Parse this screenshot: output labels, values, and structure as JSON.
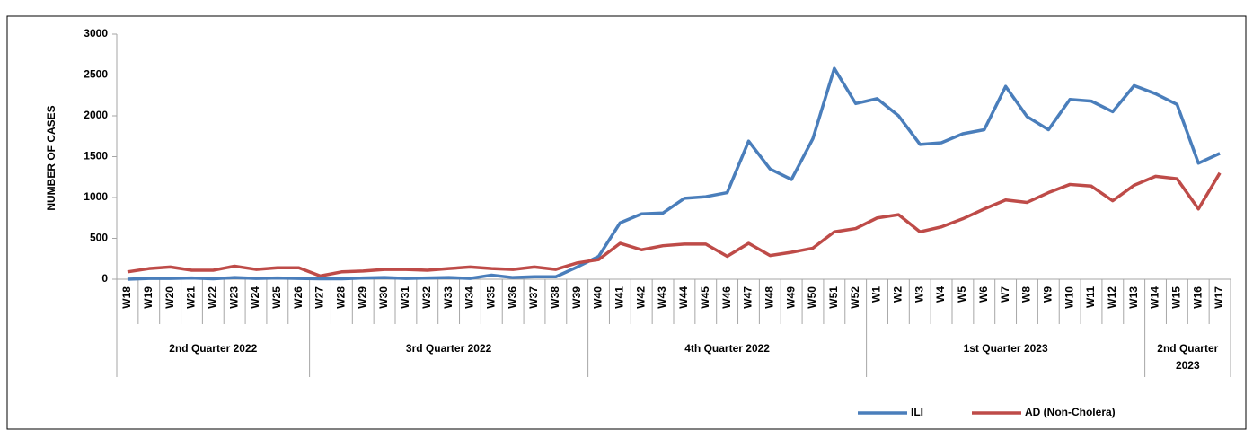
{
  "chart_data": {
    "type": "line",
    "y_label": "NUMBER OF CASES",
    "categories": [
      "W18",
      "W19",
      "W20",
      "W21",
      "W22",
      "W23",
      "W24",
      "W25",
      "W26",
      "W27",
      "W28",
      "W29",
      "W30",
      "W31",
      "W32",
      "W33",
      "W34",
      "W35",
      "W36",
      "W37",
      "W38",
      "W39",
      "W40",
      "W41",
      "W42",
      "W43",
      "W44",
      "W45",
      "W46",
      "W47",
      "W48",
      "W49",
      "W50",
      "W51",
      "W52",
      "W1",
      "W2",
      "W3",
      "W4",
      "W5",
      "W6",
      "W7",
      "W8",
      "W9",
      "W10",
      "W11",
      "W12",
      "W13",
      "W14",
      "W15",
      "W16",
      "W17"
    ],
    "category_groups": [
      {
        "label": "2nd Quarter 2022",
        "span": 9
      },
      {
        "label": "3rd Quarter 2022",
        "span": 13
      },
      {
        "label": "4th Quarter 2022",
        "span": 13
      },
      {
        "label": "1st Quarter 2023",
        "span": 13
      },
      {
        "label": "2nd Quarter 2023",
        "span": 4
      }
    ],
    "series": [
      {
        "name": "ILI",
        "color": "#4a7ebb",
        "values": [
          0,
          10,
          10,
          15,
          5,
          20,
          10,
          15,
          10,
          5,
          5,
          15,
          20,
          10,
          15,
          20,
          10,
          50,
          20,
          30,
          30,
          150,
          280,
          690,
          800,
          810,
          990,
          1010,
          1060,
          1690,
          1350,
          1220,
          1720,
          2580,
          2150,
          2210,
          2000,
          1650,
          1670,
          1780,
          1830,
          2360,
          1990,
          1830,
          2200,
          2180,
          2050,
          2370,
          2270,
          2140,
          1420,
          1540
        ]
      },
      {
        "name": "AD (Non-Cholera)",
        "color": "#be4b48",
        "values": [
          90,
          130,
          150,
          110,
          110,
          160,
          120,
          140,
          140,
          40,
          90,
          100,
          120,
          120,
          110,
          130,
          150,
          130,
          120,
          150,
          120,
          200,
          240,
          440,
          360,
          410,
          430,
          430,
          280,
          440,
          290,
          330,
          380,
          580,
          620,
          750,
          790,
          580,
          640,
          740,
          860,
          970,
          940,
          1060,
          1160,
          1140,
          960,
          1150,
          1260,
          1230,
          860,
          1300
        ]
      }
    ],
    "ylim": [
      0,
      3000
    ],
    "yticks": [
      0,
      500,
      1000,
      1500,
      2000,
      2500,
      3000
    ],
    "grid": false,
    "legend": "bottom-right"
  }
}
